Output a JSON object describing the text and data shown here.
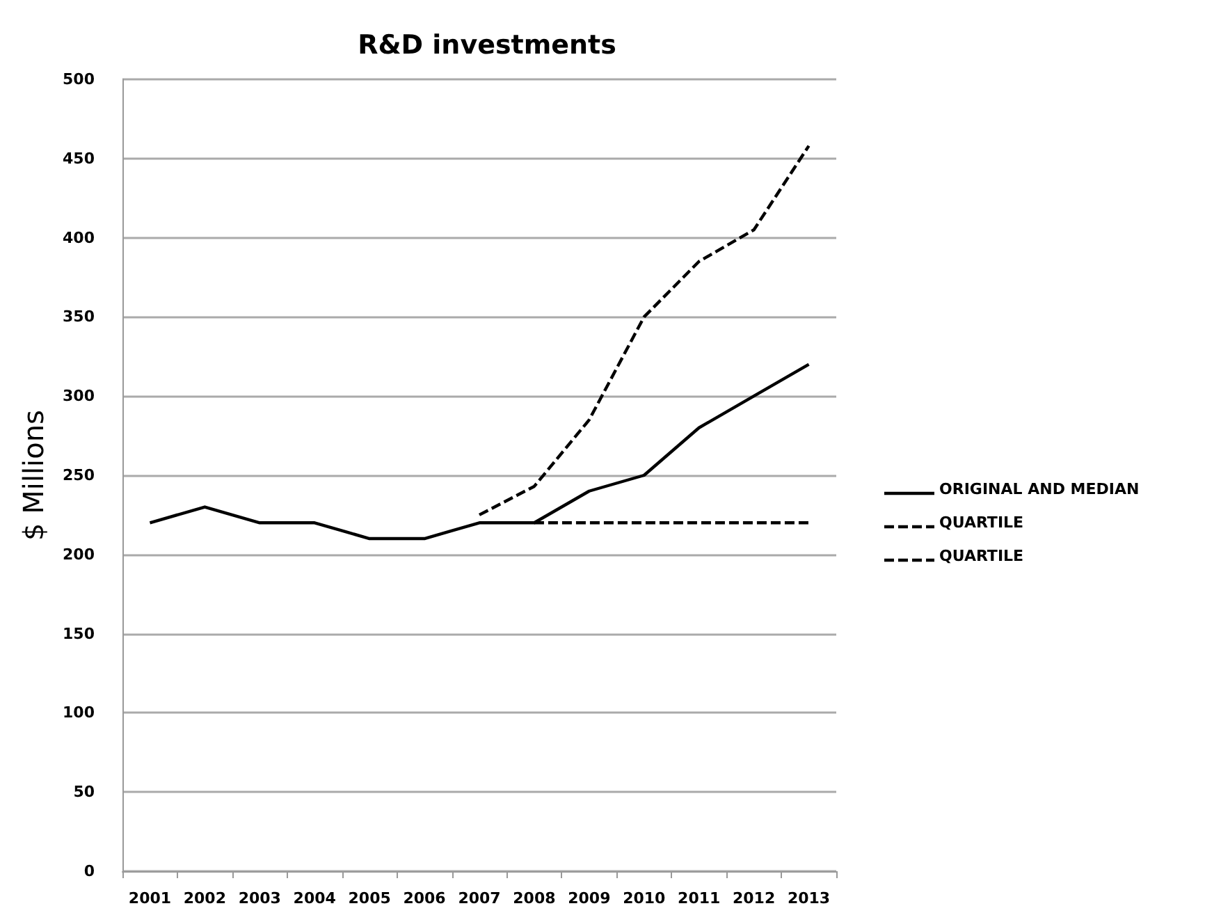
{
  "chart_data": {
    "type": "line",
    "title": "R&D investments",
    "ylabel": "$ Millions",
    "categories": [
      "2001",
      "2002",
      "2003",
      "2004",
      "2005",
      "2006",
      "2007",
      "2008",
      "2009",
      "2010",
      "2011",
      "2012",
      "2013"
    ],
    "series": [
      {
        "name": "ORIGINAL AND MEDIAN",
        "color": "#000000",
        "line_style": "solid",
        "values": [
          220,
          230,
          220,
          220,
          210,
          210,
          220,
          220,
          240,
          250,
          280,
          300,
          320
        ]
      },
      {
        "name": "QUARTILE",
        "color": "#000000",
        "line_style": "dashed",
        "values": [
          null,
          null,
          null,
          null,
          null,
          null,
          225,
          243,
          285,
          350,
          385,
          405,
          458
        ]
      },
      {
        "name": "QUARTILE",
        "color": "#000000",
        "line_style": "dashed",
        "values": [
          null,
          null,
          null,
          null,
          null,
          null,
          null,
          220,
          220,
          220,
          220,
          220,
          220
        ]
      }
    ],
    "ylim": [
      0,
      500
    ],
    "yticks": [
      0,
      50,
      100,
      150,
      200,
      250,
      300,
      350,
      400,
      450,
      500
    ],
    "grid": "y",
    "legend": "right",
    "marker": "none"
  }
}
